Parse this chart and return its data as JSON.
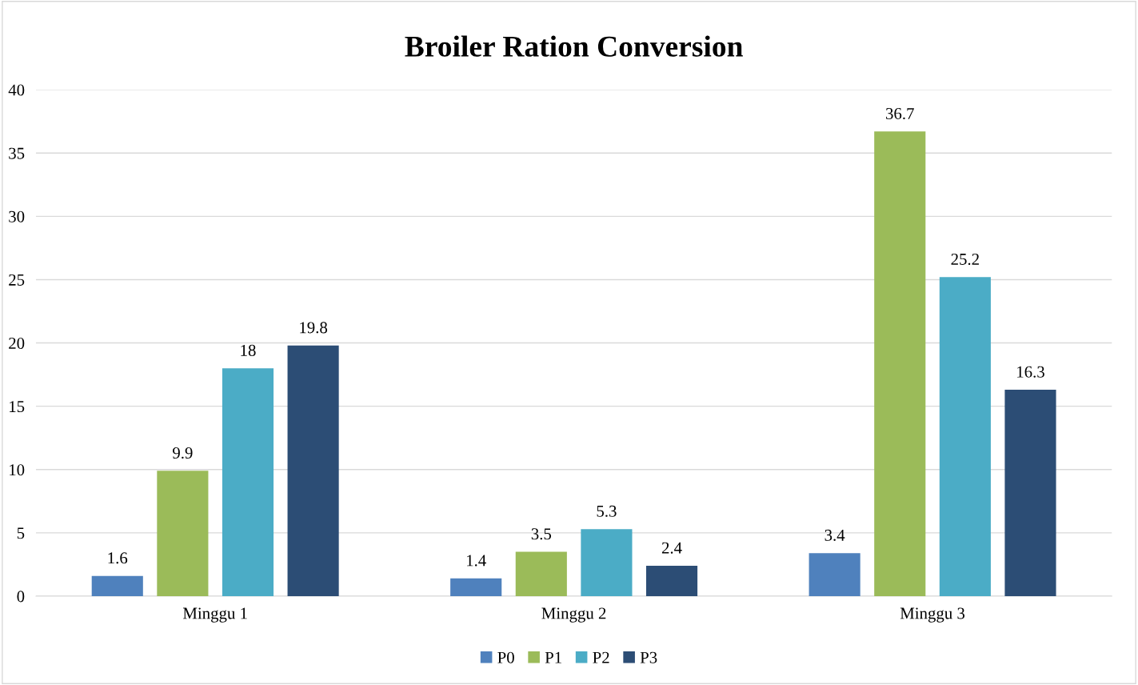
{
  "chart_data": {
    "type": "bar",
    "title": "Broiler Ration Conversion",
    "categories": [
      "Minggu 1",
      "Minggu 2",
      "Minggu 3"
    ],
    "series": [
      {
        "name": "P0",
        "color": "#4f81bd",
        "values": [
          1.6,
          1.4,
          3.4
        ]
      },
      {
        "name": "P1",
        "color": "#9bbb59",
        "values": [
          9.9,
          3.5,
          36.7
        ]
      },
      {
        "name": "P2",
        "color": "#4bacc6",
        "values": [
          18,
          5.3,
          25.2
        ]
      },
      {
        "name": "P3",
        "color": "#2c4d75",
        "values": [
          19.8,
          2.4,
          16.3
        ]
      }
    ],
    "ylim": [
      0,
      40
    ],
    "yticks": [
      0,
      5,
      10,
      15,
      20,
      25,
      30,
      35,
      40
    ],
    "grid": "y",
    "legend": "bottom",
    "data_labels": true
  }
}
